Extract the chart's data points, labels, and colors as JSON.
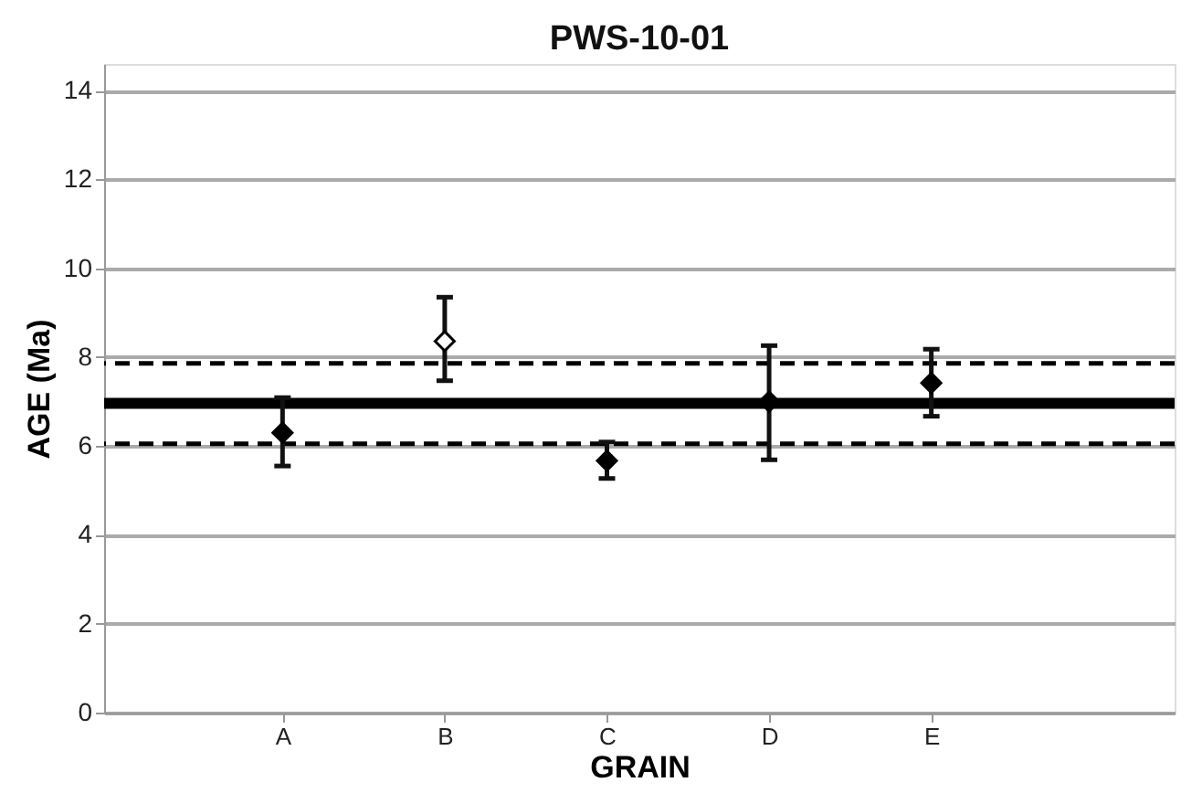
{
  "chart_data": {
    "type": "scatter",
    "title": "PWS-10-01",
    "xlabel": "GRAIN",
    "ylabel": "AGE (Ma)",
    "categories": [
      "A",
      "B",
      "C",
      "D",
      "E"
    ],
    "series": [
      {
        "color": "#000000",
        "values": [
          6.3,
          null,
          5.67,
          7.0,
          7.42
        ],
        "errors": [
          [
            5.55,
            7.09
          ],
          null,
          [
            5.27,
            6.09
          ],
          [
            5.69,
            8.26
          ],
          [
            6.67,
            8.18
          ]
        ]
      },
      {
        "color": "#ffffff",
        "values": [
          null,
          8.36,
          null,
          null,
          null
        ],
        "errors": [
          null,
          [
            7.47,
            9.35
          ],
          null,
          null,
          null
        ]
      }
    ],
    "ylim": [
      0,
      14.6
    ],
    "yticks": [
      0,
      2,
      4,
      6,
      8,
      10,
      12,
      14
    ],
    "ref_lines": [
      {
        "axis": "y",
        "value": 6.96,
        "color": "#000000",
        "line_style": "solid"
      },
      {
        "axis": "y",
        "value": 7.86,
        "color": "#000000",
        "line_style": "dashed"
      },
      {
        "axis": "y",
        "value": 6.05,
        "color": "#000000",
        "line_style": "dashed"
      }
    ],
    "grid": "y",
    "legend": false,
    "marker": "diamond"
  }
}
